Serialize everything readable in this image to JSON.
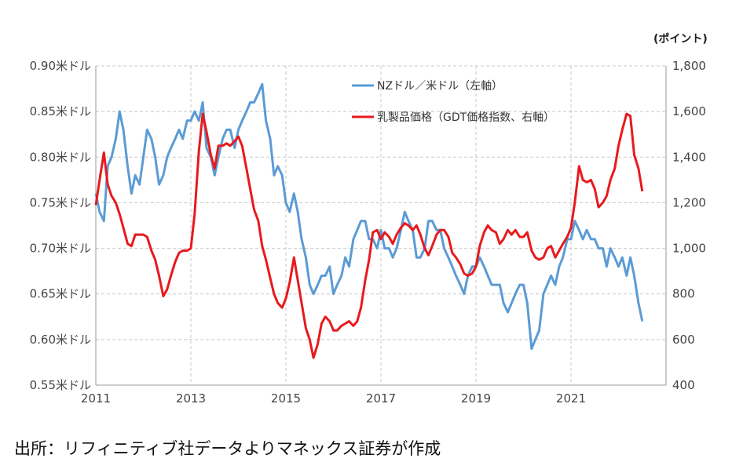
{
  "right_axis_unit": "(ポイント)",
  "source": "出所：リフィニティブ社データよりマネックス証券が作成",
  "chart_data": {
    "type": "line",
    "y_left": {
      "ticks": [
        "0.90米ドル",
        "0.85米ドル",
        "0.80米ドル",
        "0.75米ドル",
        "0.70米ドル",
        "0.65米ドル",
        "0.60米ドル",
        "0.55米ドル"
      ],
      "ylim": [
        0.55,
        0.9
      ]
    },
    "y_right": {
      "ticks": [
        "1,800",
        "1,600",
        "1,400",
        "1,200",
        "1,000",
        "800",
        "600",
        "400"
      ],
      "ylim": [
        400,
        1800
      ]
    },
    "x_ticks": [
      "2011",
      "2013",
      "2015",
      "2017",
      "2019",
      "2021"
    ],
    "xlim": [
      2011,
      2023
    ],
    "grid": true,
    "legend_position": "top-right",
    "series": [
      {
        "name": "NZドル／米ドル（左軸）",
        "color": "#5b9bd5",
        "axis": "left",
        "x": [
          2011.0,
          2011.08,
          2011.17,
          2011.25,
          2011.33,
          2011.42,
          2011.5,
          2011.58,
          2011.67,
          2011.75,
          2011.83,
          2011.92,
          2012.0,
          2012.08,
          2012.17,
          2012.25,
          2012.33,
          2012.42,
          2012.5,
          2012.58,
          2012.67,
          2012.75,
          2012.83,
          2012.92,
          2013.0,
          2013.08,
          2013.17,
          2013.25,
          2013.33,
          2013.42,
          2013.5,
          2013.58,
          2013.67,
          2013.75,
          2013.83,
          2013.92,
          2014.0,
          2014.08,
          2014.17,
          2014.25,
          2014.33,
          2014.42,
          2014.5,
          2014.58,
          2014.67,
          2014.75,
          2014.83,
          2014.92,
          2015.0,
          2015.08,
          2015.17,
          2015.25,
          2015.33,
          2015.42,
          2015.5,
          2015.58,
          2015.67,
          2015.75,
          2015.83,
          2015.92,
          2016.0,
          2016.08,
          2016.17,
          2016.25,
          2016.33,
          2016.42,
          2016.5,
          2016.58,
          2016.67,
          2016.75,
          2016.83,
          2016.92,
          2017.0,
          2017.08,
          2017.17,
          2017.25,
          2017.33,
          2017.42,
          2017.5,
          2017.58,
          2017.67,
          2017.75,
          2017.83,
          2017.92,
          2018.0,
          2018.08,
          2018.17,
          2018.25,
          2018.33,
          2018.42,
          2018.5,
          2018.58,
          2018.67,
          2018.75,
          2018.83,
          2018.92,
          2019.0,
          2019.08,
          2019.17,
          2019.25,
          2019.33,
          2019.42,
          2019.5,
          2019.58,
          2019.67,
          2019.75,
          2019.83,
          2019.92,
          2020.0,
          2020.08,
          2020.17,
          2020.25,
          2020.33,
          2020.42,
          2020.5,
          2020.58,
          2020.67,
          2020.75,
          2020.83,
          2020.92,
          2021.0,
          2021.08,
          2021.17,
          2021.25,
          2021.33,
          2021.42,
          2021.5,
          2021.58,
          2021.67,
          2021.75,
          2021.83,
          2021.92,
          2022.0,
          2022.08,
          2022.17,
          2022.25,
          2022.33,
          2022.42,
          2022.5
        ],
        "values": [
          0.76,
          0.74,
          0.73,
          0.79,
          0.8,
          0.82,
          0.85,
          0.83,
          0.79,
          0.76,
          0.78,
          0.77,
          0.8,
          0.83,
          0.82,
          0.8,
          0.77,
          0.78,
          0.8,
          0.81,
          0.82,
          0.83,
          0.82,
          0.84,
          0.84,
          0.85,
          0.84,
          0.86,
          0.81,
          0.8,
          0.78,
          0.8,
          0.82,
          0.83,
          0.83,
          0.81,
          0.83,
          0.84,
          0.85,
          0.86,
          0.86,
          0.87,
          0.88,
          0.84,
          0.82,
          0.78,
          0.79,
          0.78,
          0.75,
          0.74,
          0.76,
          0.74,
          0.71,
          0.69,
          0.66,
          0.65,
          0.66,
          0.67,
          0.67,
          0.68,
          0.65,
          0.66,
          0.67,
          0.69,
          0.68,
          0.71,
          0.72,
          0.73,
          0.73,
          0.71,
          0.71,
          0.7,
          0.72,
          0.7,
          0.7,
          0.69,
          0.7,
          0.72,
          0.74,
          0.73,
          0.72,
          0.69,
          0.69,
          0.7,
          0.73,
          0.73,
          0.72,
          0.72,
          0.7,
          0.69,
          0.68,
          0.67,
          0.66,
          0.65,
          0.67,
          0.68,
          0.68,
          0.69,
          0.68,
          0.67,
          0.66,
          0.66,
          0.66,
          0.64,
          0.63,
          0.64,
          0.65,
          0.66,
          0.66,
          0.64,
          0.59,
          0.6,
          0.61,
          0.65,
          0.66,
          0.67,
          0.66,
          0.68,
          0.69,
          0.71,
          0.71,
          0.73,
          0.72,
          0.71,
          0.72,
          0.71,
          0.71,
          0.7,
          0.7,
          0.68,
          0.7,
          0.69,
          0.68,
          0.69,
          0.67,
          0.69,
          0.67,
          0.64,
          0.62
        ]
      },
      {
        "name": "乳製品価格（GDT価格指数、右軸）",
        "color": "#e8191d",
        "axis": "right",
        "x": [
          2011.0,
          2011.08,
          2011.17,
          2011.25,
          2011.33,
          2011.42,
          2011.5,
          2011.58,
          2011.67,
          2011.75,
          2011.83,
          2011.92,
          2012.0,
          2012.08,
          2012.17,
          2012.25,
          2012.33,
          2012.42,
          2012.5,
          2012.58,
          2012.67,
          2012.75,
          2012.83,
          2012.92,
          2013.0,
          2013.08,
          2013.17,
          2013.25,
          2013.33,
          2013.42,
          2013.5,
          2013.58,
          2013.67,
          2013.75,
          2013.83,
          2013.92,
          2014.0,
          2014.08,
          2014.17,
          2014.25,
          2014.33,
          2014.42,
          2014.5,
          2014.58,
          2014.67,
          2014.75,
          2014.83,
          2014.92,
          2015.0,
          2015.08,
          2015.17,
          2015.25,
          2015.33,
          2015.42,
          2015.5,
          2015.58,
          2015.67,
          2015.75,
          2015.83,
          2015.92,
          2016.0,
          2016.08,
          2016.17,
          2016.25,
          2016.33,
          2016.42,
          2016.5,
          2016.58,
          2016.67,
          2016.75,
          2016.83,
          2016.92,
          2017.0,
          2017.08,
          2017.17,
          2017.25,
          2017.33,
          2017.42,
          2017.5,
          2017.58,
          2017.67,
          2017.75,
          2017.83,
          2017.92,
          2018.0,
          2018.08,
          2018.17,
          2018.25,
          2018.33,
          2018.42,
          2018.5,
          2018.58,
          2018.67,
          2018.75,
          2018.83,
          2018.92,
          2019.0,
          2019.08,
          2019.17,
          2019.25,
          2019.33,
          2019.42,
          2019.5,
          2019.58,
          2019.67,
          2019.75,
          2019.83,
          2019.92,
          2020.0,
          2020.08,
          2020.17,
          2020.25,
          2020.33,
          2020.42,
          2020.5,
          2020.58,
          2020.67,
          2020.75,
          2020.83,
          2020.92,
          2021.0,
          2021.08,
          2021.17,
          2021.25,
          2021.33,
          2021.42,
          2021.5,
          2021.58,
          2021.67,
          2021.75,
          2021.83,
          2021.92,
          2022.0,
          2022.08,
          2022.17,
          2022.25,
          2022.33,
          2022.42,
          2022.5
        ],
        "values": [
          1190,
          1300,
          1420,
          1280,
          1230,
          1200,
          1150,
          1090,
          1020,
          1010,
          1060,
          1060,
          1060,
          1050,
          990,
          950,
          880,
          790,
          820,
          880,
          940,
          980,
          990,
          990,
          1000,
          1150,
          1430,
          1590,
          1510,
          1410,
          1350,
          1450,
          1450,
          1460,
          1450,
          1470,
          1490,
          1450,
          1350,
          1260,
          1170,
          1120,
          1010,
          950,
          870,
          800,
          760,
          740,
          780,
          850,
          960,
          860,
          760,
          650,
          600,
          520,
          580,
          670,
          700,
          680,
          640,
          640,
          660,
          670,
          680,
          660,
          680,
          740,
          860,
          950,
          1070,
          1080,
          1040,
          1070,
          1050,
          1020,
          1060,
          1090,
          1110,
          1100,
          1080,
          1100,
          1060,
          1000,
          970,
          1010,
          1060,
          1080,
          1080,
          1050,
          980,
          960,
          930,
          890,
          880,
          890,
          920,
          1010,
          1070,
          1100,
          1080,
          1070,
          1020,
          1040,
          1080,
          1060,
          1080,
          1050,
          1050,
          1070,
          990,
          960,
          950,
          960,
          1000,
          1010,
          960,
          990,
          1020,
          1050,
          1090,
          1200,
          1360,
          1300,
          1290,
          1300,
          1260,
          1180,
          1200,
          1230,
          1300,
          1350,
          1450,
          1520,
          1590,
          1580,
          1410,
          1350,
          1250
        ]
      }
    ]
  }
}
